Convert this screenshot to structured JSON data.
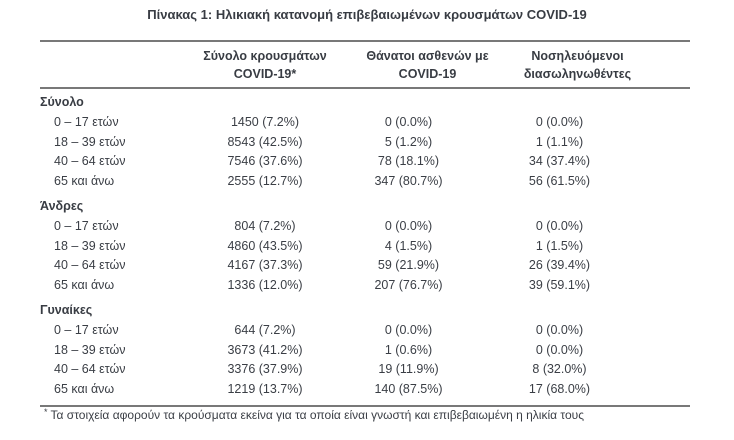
{
  "title": "Πίνακας 1: Ηλικιακή κατανομή επιβεβαιωμένων κρουσμάτων COVID-19",
  "table": {
    "columns": [
      {
        "line1": "Σύνολο κρουσμάτων",
        "line2": "COVID-19*"
      },
      {
        "line1": "Θάνατοι ασθενών με",
        "line2": "COVID-19"
      },
      {
        "line1": "Νοσηλευόμενοι",
        "line2": "διασωληνωθέντες"
      }
    ],
    "sections": [
      {
        "label": "Σύνολο",
        "rows": [
          {
            "label": "0 – 17 ετών",
            "cases": "1450 (7.2%)",
            "deaths": "0 (0.0%)",
            "intubated": "0 (0.0%)"
          },
          {
            "label": "18 – 39 ετών",
            "cases": "8543 (42.5%)",
            "deaths": "5 (1.2%)",
            "intubated": "1 (1.1%)"
          },
          {
            "label": "40 – 64 ετών",
            "cases": "7546 (37.6%)",
            "deaths": "78 (18.1%)",
            "intubated": "34 (37.4%)"
          },
          {
            "label": "65 και άνω",
            "cases": "2555 (12.7%)",
            "deaths": "347 (80.7%)",
            "intubated": "56 (61.5%)"
          }
        ]
      },
      {
        "label": "Άνδρες",
        "rows": [
          {
            "label": "0 – 17 ετών",
            "cases": "804 (7.2%)",
            "deaths": "0 (0.0%)",
            "intubated": "0 (0.0%)"
          },
          {
            "label": "18 – 39 ετών",
            "cases": "4860 (43.5%)",
            "deaths": "4 (1.5%)",
            "intubated": "1 (1.5%)"
          },
          {
            "label": "40 – 64 ετών",
            "cases": "4167 (37.3%)",
            "deaths": "59 (21.9%)",
            "intubated": "26 (39.4%)"
          },
          {
            "label": "65 και άνω",
            "cases": "1336 (12.0%)",
            "deaths": "207 (76.7%)",
            "intubated": "39 (59.1%)"
          }
        ]
      },
      {
        "label": "Γυναίκες",
        "rows": [
          {
            "label": "0 – 17 ετών",
            "cases": "644 (7.2%)",
            "deaths": "0 (0.0%)",
            "intubated": "0 (0.0%)"
          },
          {
            "label": "18 – 39 ετών",
            "cases": "3673 (41.2%)",
            "deaths": "1 (0.6%)",
            "intubated": "0 (0.0%)"
          },
          {
            "label": "40 – 64 ετών",
            "cases": "3376 (37.9%)",
            "deaths": "19 (11.9%)",
            "intubated": "8 (32.0%)"
          },
          {
            "label": "65 και άνω",
            "cases": "1219 (13.7%)",
            "deaths": "140 (87.5%)",
            "intubated": "17 (68.0%)"
          }
        ]
      }
    ]
  },
  "footnote": {
    "marker": "*",
    "text": "Τα στοιχεία αφορούν τα κρούσματα εκείνα για τα οποία είναι γνωστή και επιβεβαιωμένη η ηλικία τους"
  }
}
